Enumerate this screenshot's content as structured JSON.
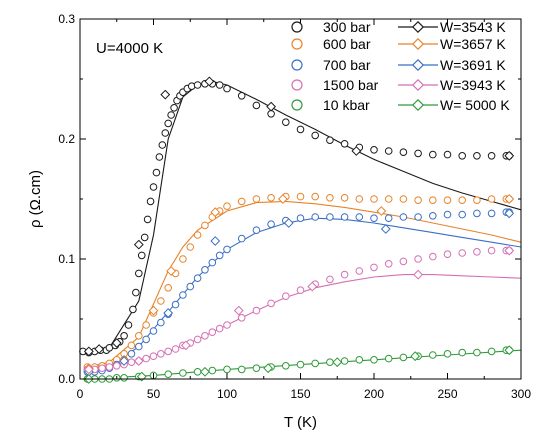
{
  "chart_data": {
    "type": "scatter",
    "xlabel": "T (K)",
    "ylabel": "ρ (Ω.cm)",
    "xlim": [
      0,
      300
    ],
    "ylim": [
      0,
      0.3
    ],
    "xticks": [
      0,
      50,
      100,
      150,
      200,
      250,
      300
    ],
    "yticks": [
      0.0,
      0.1,
      0.2,
      0.3
    ],
    "ytick_labels": [
      "0.0",
      "0.1",
      "0.2",
      "0.3"
    ],
    "annotation": "U=4000 K",
    "legend_position": "top-right",
    "grid": false,
    "measured": [
      {
        "name": "300 bar",
        "color": "#1a1a1a",
        "marker": "circle",
        "x": [
          2,
          6,
          10,
          14,
          18,
          20,
          24,
          27,
          30,
          33,
          36,
          38,
          40,
          42,
          44,
          46,
          48,
          50,
          52,
          54,
          56,
          58,
          60,
          62,
          64,
          66,
          68,
          70,
          73,
          76,
          80,
          85,
          90,
          95,
          100,
          110,
          120,
          130,
          140,
          150,
          160,
          170,
          180,
          190,
          200,
          210,
          220,
          230,
          240,
          250,
          260,
          270,
          280,
          290,
          292
        ],
        "y": [
          0.023,
          0.022,
          0.023,
          0.024,
          0.024,
          0.026,
          0.028,
          0.031,
          0.036,
          0.045,
          0.058,
          0.072,
          0.088,
          0.103,
          0.118,
          0.133,
          0.148,
          0.16,
          0.172,
          0.185,
          0.195,
          0.205,
          0.213,
          0.22,
          0.226,
          0.232,
          0.236,
          0.239,
          0.242,
          0.244,
          0.245,
          0.246,
          0.246,
          0.245,
          0.242,
          0.236,
          0.228,
          0.221,
          0.214,
          0.208,
          0.203,
          0.199,
          0.196,
          0.193,
          0.191,
          0.19,
          0.189,
          0.188,
          0.187,
          0.187,
          0.186,
          0.186,
          0.186,
          0.186,
          0.186
        ]
      },
      {
        "name": "600 bar",
        "color": "#e8832a",
        "marker": "circle",
        "x": [
          5,
          10,
          15,
          20,
          25,
          30,
          35,
          40,
          45,
          50,
          55,
          60,
          65,
          70,
          75,
          80,
          85,
          90,
          95,
          100,
          110,
          120,
          130,
          140,
          150,
          160,
          170,
          180,
          190,
          200,
          210,
          220,
          230,
          240,
          250,
          260,
          270,
          280,
          290,
          292
        ],
        "y": [
          0.01,
          0.01,
          0.011,
          0.013,
          0.016,
          0.021,
          0.028,
          0.036,
          0.045,
          0.055,
          0.065,
          0.076,
          0.088,
          0.1,
          0.11,
          0.12,
          0.128,
          0.135,
          0.14,
          0.144,
          0.148,
          0.15,
          0.151,
          0.152,
          0.152,
          0.152,
          0.151,
          0.151,
          0.15,
          0.15,
          0.15,
          0.15,
          0.149,
          0.149,
          0.149,
          0.149,
          0.149,
          0.15,
          0.15,
          0.15
        ]
      },
      {
        "name": "700 bar",
        "color": "#3a6fc4",
        "marker": "circle",
        "x": [
          5,
          10,
          15,
          20,
          25,
          30,
          35,
          40,
          45,
          50,
          55,
          60,
          65,
          70,
          75,
          80,
          85,
          90,
          95,
          100,
          110,
          120,
          130,
          140,
          150,
          160,
          170,
          180,
          190,
          200,
          210,
          220,
          230,
          240,
          250,
          260,
          270,
          280,
          290,
          292
        ],
        "y": [
          0.006,
          0.006,
          0.007,
          0.009,
          0.012,
          0.016,
          0.021,
          0.027,
          0.033,
          0.04,
          0.047,
          0.054,
          0.062,
          0.07,
          0.077,
          0.084,
          0.091,
          0.097,
          0.103,
          0.108,
          0.117,
          0.124,
          0.129,
          0.132,
          0.134,
          0.135,
          0.135,
          0.135,
          0.135,
          0.134,
          0.134,
          0.135,
          0.135,
          0.136,
          0.137,
          0.137,
          0.138,
          0.138,
          0.139,
          0.139
        ]
      },
      {
        "name": "1500 bar",
        "color": "#d66fb3",
        "marker": "circle",
        "x": [
          5,
          10,
          15,
          20,
          25,
          30,
          35,
          40,
          45,
          50,
          55,
          60,
          65,
          70,
          75,
          80,
          85,
          90,
          95,
          100,
          110,
          120,
          130,
          140,
          150,
          160,
          170,
          180,
          190,
          200,
          210,
          220,
          230,
          240,
          250,
          260,
          270,
          280,
          290,
          292
        ],
        "y": [
          0.008,
          0.008,
          0.009,
          0.01,
          0.011,
          0.012,
          0.014,
          0.015,
          0.017,
          0.019,
          0.021,
          0.023,
          0.025,
          0.028,
          0.03,
          0.033,
          0.036,
          0.039,
          0.042,
          0.045,
          0.051,
          0.057,
          0.063,
          0.069,
          0.074,
          0.079,
          0.083,
          0.087,
          0.09,
          0.093,
          0.096,
          0.098,
          0.1,
          0.102,
          0.104,
          0.105,
          0.106,
          0.107,
          0.107,
          0.107
        ]
      },
      {
        "name": "10 kbar",
        "color": "#2f9a3a",
        "marker": "circle",
        "x": [
          5,
          10,
          15,
          20,
          25,
          30,
          40,
          50,
          60,
          70,
          80,
          90,
          100,
          110,
          120,
          130,
          140,
          150,
          160,
          170,
          180,
          190,
          200,
          210,
          220,
          230,
          240,
          250,
          260,
          270,
          280,
          290,
          292
        ],
        "y": [
          0.0,
          0.0,
          0.0,
          0.0,
          0.001,
          0.001,
          0.002,
          0.003,
          0.004,
          0.005,
          0.006,
          0.007,
          0.008,
          0.008,
          0.009,
          0.01,
          0.011,
          0.012,
          0.013,
          0.014,
          0.015,
          0.016,
          0.016,
          0.017,
          0.018,
          0.019,
          0.02,
          0.021,
          0.022,
          0.022,
          0.023,
          0.024,
          0.024
        ]
      }
    ],
    "model": [
      {
        "name": "W=3543 K",
        "color": "#1a1a1a",
        "marker": "diamond",
        "x": [
          5,
          20,
          40,
          50,
          60,
          70,
          80,
          90,
          100,
          120,
          140,
          160,
          180,
          200,
          220,
          240,
          260,
          280,
          300
        ],
        "y": [
          0.022,
          0.026,
          0.065,
          0.12,
          0.2,
          0.235,
          0.245,
          0.248,
          0.245,
          0.233,
          0.22,
          0.208,
          0.195,
          0.183,
          0.173,
          0.163,
          0.155,
          0.148,
          0.141
        ],
        "markers_x": [
          6,
          13,
          25,
          40,
          58,
          88,
          130,
          188,
          292
        ],
        "markers_y": [
          0.023,
          0.025,
          0.03,
          0.112,
          0.237,
          0.248,
          0.227,
          0.19,
          0.186
        ]
      },
      {
        "name": "W=3657 K",
        "color": "#e8832a",
        "marker": "diamond",
        "x": [
          5,
          20,
          40,
          60,
          70,
          80,
          100,
          120,
          140,
          160,
          180,
          200,
          220,
          240,
          260,
          280,
          300
        ],
        "y": [
          0.01,
          0.014,
          0.035,
          0.09,
          0.11,
          0.124,
          0.14,
          0.147,
          0.148,
          0.146,
          0.143,
          0.139,
          0.135,
          0.13,
          0.125,
          0.12,
          0.114
        ],
        "markers_x": [
          6,
          30,
          50,
          62,
          92,
          138,
          205,
          292
        ],
        "markers_y": [
          0.009,
          0.016,
          0.057,
          0.09,
          0.139,
          0.15,
          0.14,
          0.15
        ]
      },
      {
        "name": "W=3691 K",
        "color": "#3a6fc4",
        "marker": "diamond",
        "x": [
          5,
          20,
          40,
          60,
          80,
          100,
          120,
          140,
          160,
          180,
          200,
          220,
          240,
          260,
          280,
          300
        ],
        "y": [
          0.006,
          0.01,
          0.027,
          0.056,
          0.085,
          0.108,
          0.122,
          0.13,
          0.134,
          0.133,
          0.13,
          0.126,
          0.122,
          0.118,
          0.114,
          0.11
        ],
        "markers_x": [
          6,
          30,
          60,
          92,
          142,
          208,
          292
        ],
        "markers_y": [
          0.006,
          0.015,
          0.055,
          0.115,
          0.13,
          0.125,
          0.138
        ]
      },
      {
        "name": "W=3943 K",
        "color": "#d66fb3",
        "marker": "diamond",
        "x": [
          5,
          20,
          40,
          60,
          80,
          100,
          120,
          140,
          160,
          180,
          200,
          220,
          240,
          260,
          280,
          300
        ],
        "y": [
          0.008,
          0.011,
          0.016,
          0.023,
          0.033,
          0.045,
          0.057,
          0.068,
          0.076,
          0.081,
          0.085,
          0.087,
          0.087,
          0.086,
          0.085,
          0.084
        ],
        "markers_x": [
          6,
          40,
          72,
          108,
          158,
          230,
          292
        ],
        "markers_y": [
          0.008,
          0.015,
          0.028,
          0.057,
          0.077,
          0.087,
          0.107
        ]
      },
      {
        "name": "W= 5000 K",
        "color": "#2f9a3a",
        "marker": "diamond",
        "x": [
          5,
          50,
          100,
          150,
          200,
          250,
          300
        ],
        "y": [
          0.0,
          0.003,
          0.008,
          0.012,
          0.016,
          0.02,
          0.024
        ],
        "markers_x": [
          6,
          42,
          85,
          128,
          175,
          228,
          292
        ],
        "markers_y": [
          0.0,
          0.002,
          0.006,
          0.009,
          0.014,
          0.019,
          0.024
        ]
      }
    ]
  }
}
